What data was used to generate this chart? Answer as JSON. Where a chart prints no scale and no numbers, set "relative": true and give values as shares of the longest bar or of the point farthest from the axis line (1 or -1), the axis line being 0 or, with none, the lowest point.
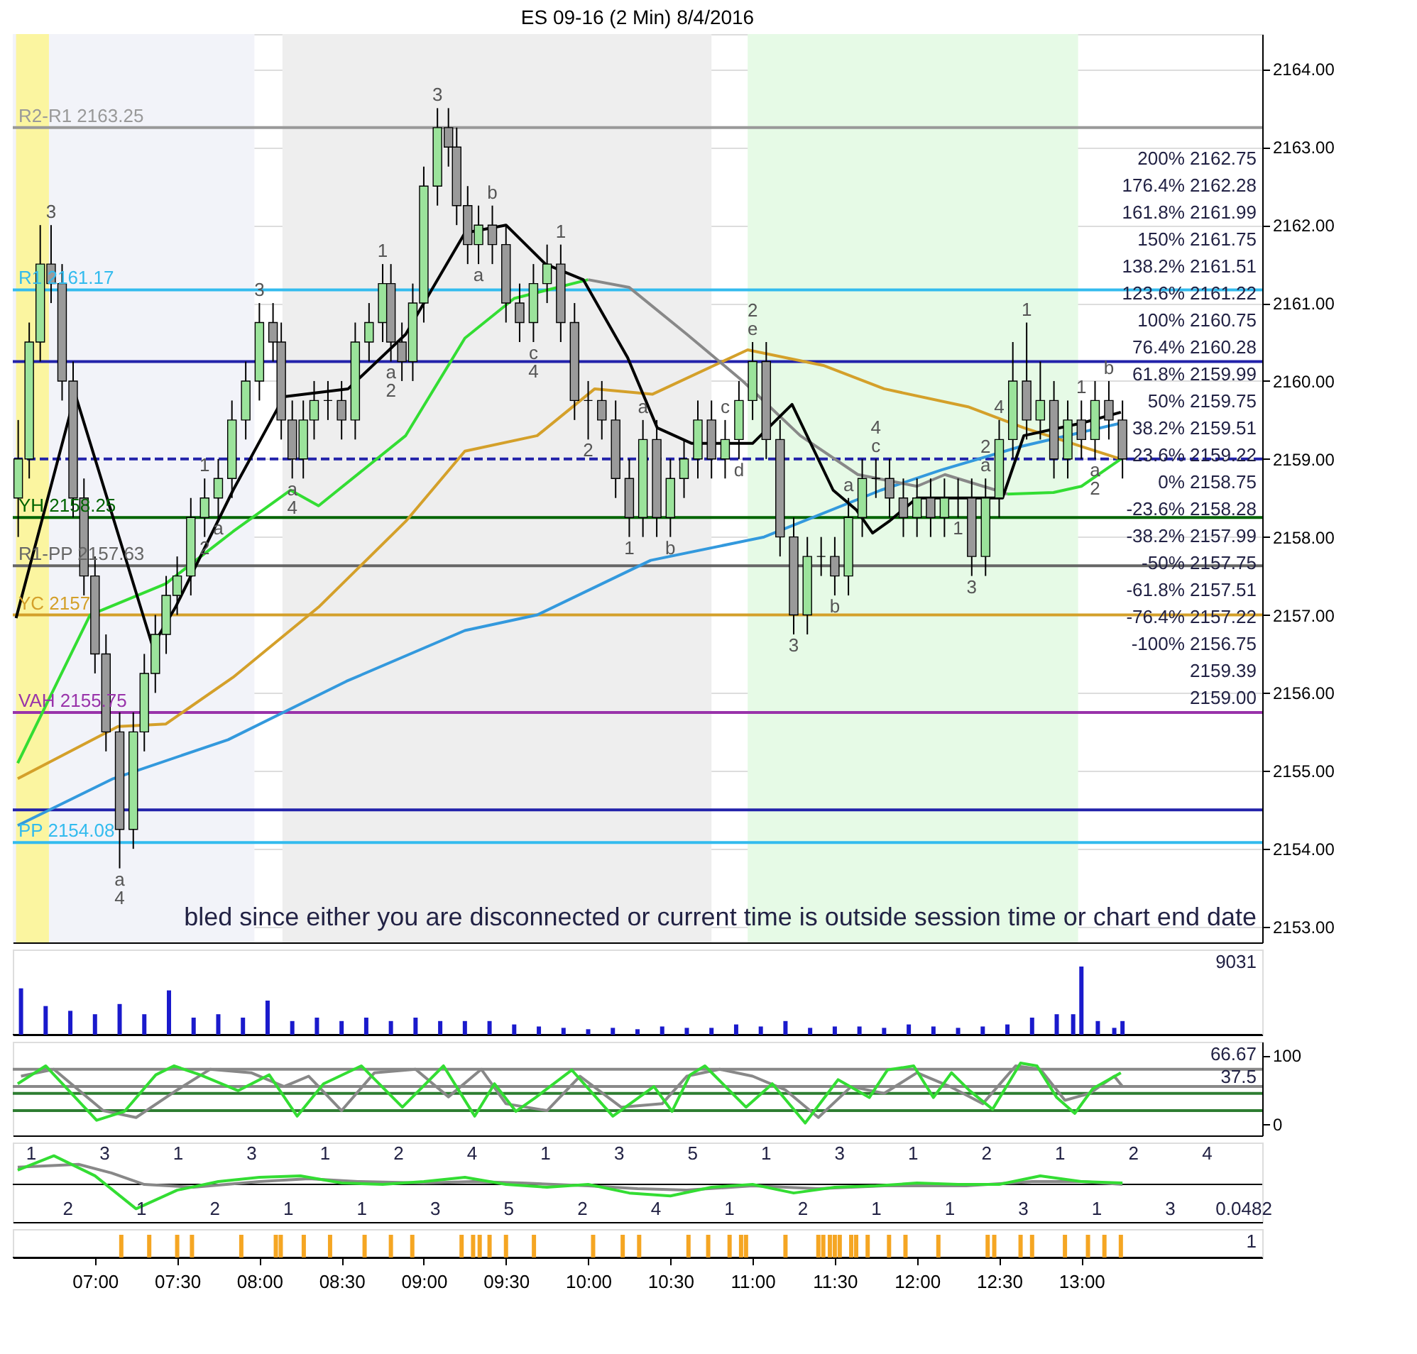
{
  "chart_data": [
    {
      "type": "candlestick",
      "title": "ES 09-16 (2 Min)  8/4/2016",
      "xlim": [
        6.5,
        14.1
      ],
      "ylim": [
        2152.8,
        2164.45
      ],
      "grid": "y",
      "tick_labels": "y",
      "yticks": [
        {
          "value": 2153,
          "label": "2153.00"
        },
        {
          "value": 2154,
          "label": "2154.00"
        },
        {
          "value": 2155,
          "label": "2155.00"
        },
        {
          "value": 2156,
          "label": "2156.00"
        },
        {
          "value": 2157,
          "label": "2157.00"
        },
        {
          "value": 2158,
          "label": "2158.00"
        },
        {
          "value": 2159,
          "label": "2159.00"
        },
        {
          "value": 2160,
          "label": "2160.00"
        },
        {
          "value": 2161,
          "label": "2161.00"
        },
        {
          "value": 2162,
          "label": "2162.00"
        },
        {
          "value": 2163,
          "label": "2163.00"
        },
        {
          "value": 2164,
          "label": "2164.00"
        }
      ],
      "x": [
        6.533,
        6.6,
        6.667,
        6.733,
        6.8,
        6.867,
        6.933,
        7.0,
        7.067,
        7.15,
        7.233,
        7.3,
        7.367,
        7.433,
        7.5,
        7.583,
        7.667,
        7.75,
        7.833,
        7.917,
        8.0,
        8.083,
        8.133,
        8.2,
        8.267,
        8.333,
        8.417,
        8.5,
        8.583,
        8.667,
        8.75,
        8.8,
        8.867,
        8.933,
        9.0,
        9.083,
        9.15,
        9.2,
        9.267,
        9.333,
        9.417,
        9.5,
        9.583,
        9.667,
        9.75,
        9.833,
        9.917,
        10.0,
        10.083,
        10.167,
        10.25,
        10.333,
        10.417,
        10.5,
        10.583,
        10.667,
        10.75,
        10.833,
        10.917,
        11.0,
        11.083,
        11.167,
        11.25,
        11.333,
        11.417,
        11.5,
        11.583,
        11.667,
        11.75,
        11.833,
        11.917,
        12.0,
        12.083,
        12.167,
        12.25,
        12.333,
        12.417,
        12.5,
        12.583,
        12.667,
        12.75,
        12.833,
        12.917,
        13.0,
        13.083,
        13.167,
        13.25
      ],
      "ohlc": [
        [
          2158.5,
          2159.5,
          2158.0,
          2159.0
        ],
        [
          2159.0,
          2160.75,
          2158.75,
          2160.5
        ],
        [
          2160.5,
          2162.0,
          2160.25,
          2161.5
        ],
        [
          2161.5,
          2162.0,
          2161.0,
          2161.25
        ],
        [
          2161.25,
          2161.5,
          2159.75,
          2160.0
        ],
        [
          2160.0,
          2160.25,
          2158.25,
          2158.5
        ],
        [
          2158.5,
          2158.75,
          2157.25,
          2157.5
        ],
        [
          2157.5,
          2157.75,
          2156.25,
          2156.5
        ],
        [
          2156.5,
          2156.75,
          2155.25,
          2155.5
        ],
        [
          2155.5,
          2155.75,
          2153.75,
          2154.25
        ],
        [
          2154.25,
          2155.75,
          2154.0,
          2155.5
        ],
        [
          2155.5,
          2156.5,
          2155.25,
          2156.25
        ],
        [
          2156.25,
          2157.0,
          2156.0,
          2156.75
        ],
        [
          2156.75,
          2157.5,
          2156.5,
          2157.25
        ],
        [
          2157.25,
          2157.75,
          2157.0,
          2157.5
        ],
        [
          2157.5,
          2158.5,
          2157.25,
          2158.25
        ],
        [
          2158.25,
          2158.75,
          2158.0,
          2158.5
        ],
        [
          2158.5,
          2159.0,
          2158.25,
          2158.75
        ],
        [
          2158.75,
          2159.75,
          2158.5,
          2159.5
        ],
        [
          2159.5,
          2160.25,
          2159.25,
          2160.0
        ],
        [
          2160.0,
          2161.0,
          2159.75,
          2160.75
        ],
        [
          2160.75,
          2161.0,
          2160.25,
          2160.5
        ],
        [
          2160.5,
          2160.75,
          2159.25,
          2159.5
        ],
        [
          2159.5,
          2159.75,
          2158.75,
          2159.0
        ],
        [
          2159.0,
          2159.75,
          2158.75,
          2159.5
        ],
        [
          2159.5,
          2160.0,
          2159.25,
          2159.75
        ],
        [
          2159.75,
          2160.0,
          2159.5,
          2159.75
        ],
        [
          2159.75,
          2160.0,
          2159.25,
          2159.5
        ],
        [
          2159.5,
          2160.75,
          2159.25,
          2160.5
        ],
        [
          2160.5,
          2161.0,
          2160.25,
          2160.75
        ],
        [
          2160.75,
          2161.5,
          2160.5,
          2161.25
        ],
        [
          2161.25,
          2161.5,
          2160.25,
          2160.5
        ],
        [
          2160.5,
          2160.75,
          2160.0,
          2160.25
        ],
        [
          2160.25,
          2161.25,
          2160.0,
          2161.0
        ],
        [
          2161.0,
          2162.75,
          2160.75,
          2162.5
        ],
        [
          2162.5,
          2163.5,
          2162.25,
          2163.25
        ],
        [
          2163.25,
          2163.5,
          2162.75,
          2163.0
        ],
        [
          2163.0,
          2163.25,
          2162.0,
          2162.25
        ],
        [
          2162.25,
          2162.5,
          2161.5,
          2161.75
        ],
        [
          2161.75,
          2162.25,
          2161.5,
          2162.0
        ],
        [
          2162.0,
          2162.25,
          2161.5,
          2161.75
        ],
        [
          2161.75,
          2162.0,
          2160.75,
          2161.0
        ],
        [
          2161.0,
          2161.25,
          2160.5,
          2160.75
        ],
        [
          2160.75,
          2161.5,
          2160.5,
          2161.25
        ],
        [
          2161.25,
          2161.75,
          2161.0,
          2161.5
        ],
        [
          2161.5,
          2161.75,
          2160.5,
          2160.75
        ],
        [
          2160.75,
          2161.0,
          2159.5,
          2159.75
        ],
        [
          2159.75,
          2160.0,
          2159.25,
          2159.75
        ],
        [
          2159.75,
          2160.0,
          2159.25,
          2159.5
        ],
        [
          2159.5,
          2159.75,
          2158.5,
          2158.75
        ],
        [
          2158.75,
          2159.0,
          2158.0,
          2158.25
        ],
        [
          2158.25,
          2159.5,
          2158.0,
          2159.25
        ],
        [
          2159.25,
          2159.5,
          2158.0,
          2158.25
        ],
        [
          2158.25,
          2159.0,
          2158.0,
          2158.75
        ],
        [
          2158.75,
          2159.25,
          2158.5,
          2159.0
        ],
        [
          2159.0,
          2159.75,
          2158.75,
          2159.5
        ],
        [
          2159.5,
          2159.75,
          2158.75,
          2159.0
        ],
        [
          2159.0,
          2159.5,
          2158.75,
          2159.25
        ],
        [
          2159.25,
          2160.0,
          2159.0,
          2159.75
        ],
        [
          2159.75,
          2160.5,
          2159.5,
          2160.25
        ],
        [
          2160.25,
          2160.5,
          2159.0,
          2159.25
        ],
        [
          2159.25,
          2159.5,
          2157.75,
          2158.0
        ],
        [
          2158.0,
          2158.25,
          2156.75,
          2157.0
        ],
        [
          2157.0,
          2158.0,
          2156.75,
          2157.75
        ],
        [
          2157.75,
          2158.0,
          2157.5,
          2157.75
        ],
        [
          2157.75,
          2158.0,
          2157.25,
          2157.5
        ],
        [
          2157.5,
          2158.5,
          2157.25,
          2158.25
        ],
        [
          2158.25,
          2159.0,
          2158.0,
          2158.75
        ],
        [
          2158.75,
          2159.0,
          2158.5,
          2158.75
        ],
        [
          2158.75,
          2159.0,
          2158.25,
          2158.5
        ],
        [
          2158.5,
          2158.75,
          2158.0,
          2158.25
        ],
        [
          2158.25,
          2158.75,
          2158.0,
          2158.5
        ],
        [
          2158.5,
          2158.75,
          2158.0,
          2158.25
        ],
        [
          2158.25,
          2158.75,
          2158.0,
          2158.5
        ],
        [
          2158.5,
          2158.75,
          2158.25,
          2158.5
        ],
        [
          2158.5,
          2158.75,
          2157.5,
          2157.75
        ],
        [
          2157.75,
          2158.75,
          2157.5,
          2158.5
        ],
        [
          2158.5,
          2159.5,
          2158.25,
          2159.25
        ],
        [
          2159.25,
          2160.5,
          2159.0,
          2160.0
        ],
        [
          2160.0,
          2160.75,
          2159.25,
          2159.5
        ],
        [
          2159.5,
          2160.25,
          2159.25,
          2159.75
        ],
        [
          2159.75,
          2160.0,
          2158.75,
          2159.0
        ],
        [
          2159.0,
          2159.75,
          2158.75,
          2159.5
        ],
        [
          2159.5,
          2159.75,
          2159.0,
          2159.25
        ],
        [
          2159.25,
          2160.0,
          2159.0,
          2159.75
        ],
        [
          2159.75,
          2160.0,
          2159.25,
          2159.5
        ],
        [
          2159.5,
          2159.75,
          2158.75,
          2159.0
        ]
      ],
      "series": [
        {
          "type": "line",
          "color": "#3399dd",
          "x": [
            6.53,
            7.11,
            7.81,
            8.53,
            9.25,
            9.69,
            10.38,
            11.07,
            11.78,
            12.15,
            12.63,
            13.24
          ],
          "values": [
            2154.3,
            2154.9,
            2155.4,
            2156.15,
            2156.8,
            2157.0,
            2157.7,
            2158.0,
            2158.6,
            2158.86,
            2159.16,
            2159.46
          ]
        },
        {
          "type": "line",
          "color": "#d4a02a",
          "x": [
            6.53,
            7.14,
            7.43,
            7.84,
            8.36,
            8.89,
            9.25,
            9.69,
            10.04,
            10.39,
            10.97,
            11.43,
            11.8,
            12.31,
            12.65,
            13.0,
            13.24
          ],
          "values": [
            2154.9,
            2155.57,
            2155.6,
            2156.2,
            2157.1,
            2158.2,
            2159.1,
            2159.3,
            2159.9,
            2159.83,
            2160.4,
            2160.2,
            2159.9,
            2159.67,
            2159.4,
            2159.16,
            2159.0
          ]
        },
        {
          "type": "line",
          "color": "#33dd33",
          "x": [
            6.53,
            6.97,
            7.43,
            7.84,
            8.19,
            8.36,
            8.89,
            9.25,
            9.55,
            10.0
          ],
          "values": [
            2155.1,
            2157.0,
            2157.4,
            2158.07,
            2158.6,
            2158.4,
            2159.3,
            2160.55,
            2161.06,
            2161.3
          ]
        },
        {
          "type": "line",
          "color": "#888888",
          "x": [
            10.0,
            10.25,
            10.6,
            10.94,
            11.29,
            11.64,
            12.0,
            12.17,
            12.48,
            12.55
          ],
          "values": [
            2161.3,
            2161.2,
            2160.6,
            2160.0,
            2159.3,
            2158.8,
            2158.65,
            2158.8,
            2158.6,
            2158.55
          ]
        },
        {
          "type": "line",
          "color": "#33dd33",
          "x": [
            12.55,
            12.83,
            13.0,
            13.24
          ],
          "values": [
            2158.55,
            2158.57,
            2158.65,
            2159.0
          ]
        },
        {
          "type": "line",
          "color": "#000000",
          "x": [
            6.52,
            6.88,
            7.35,
            7.49,
            7.84,
            8.15,
            8.54,
            8.89,
            9.25,
            9.5,
            9.74,
            9.97,
            10.24,
            10.42,
            10.63,
            11.0,
            11.24,
            11.49,
            11.63,
            11.73,
            11.83,
            12.0,
            12.52,
            12.65,
            13.0,
            13.24
          ],
          "values": [
            2156.96,
            2159.83,
            2156.6,
            2157.1,
            2158.6,
            2159.8,
            2159.9,
            2160.6,
            2161.9,
            2162.0,
            2161.5,
            2161.3,
            2160.3,
            2159.4,
            2159.2,
            2159.2,
            2159.7,
            2158.6,
            2158.35,
            2158.05,
            2158.2,
            2158.5,
            2158.5,
            2159.3,
            2159.46,
            2159.6
          ]
        }
      ],
      "ref_lines": [
        {
          "axis": "y",
          "value": 2163.25,
          "label": "R2-R1 2163.25",
          "color": "#999999"
        },
        {
          "axis": "y",
          "value": 2161.17,
          "label": "R1 2161.17",
          "color": "#33bbee"
        },
        {
          "axis": "y",
          "value": 2160.25,
          "color": "#2222aa"
        },
        {
          "axis": "y",
          "value": 2159.0,
          "color": "#2222aa",
          "line_style": "dashed"
        },
        {
          "axis": "y",
          "value": 2158.25,
          "label": "YH 2158.25",
          "color": "#006400"
        },
        {
          "axis": "y",
          "value": 2157.63,
          "label": "R1-PP 2157.63",
          "color": "#666666"
        },
        {
          "axis": "y",
          "value": 2157.0,
          "label": "YC 2157",
          "color": "#d4a02a"
        },
        {
          "axis": "y",
          "value": 2155.75,
          "label": "VAH 2155.75",
          "color": "#9933aa"
        },
        {
          "axis": "y",
          "value": 2154.5,
          "color": "#2222aa"
        },
        {
          "axis": "y",
          "value": 2154.08,
          "label": "PP 2154.08",
          "color": "#33bbee"
        }
      ],
      "bands": [
        {
          "axis": "x",
          "from": 6.5,
          "to": 7.97,
          "color": "#f2f3f9"
        },
        {
          "axis": "x",
          "from": 6.52,
          "to": 6.72,
          "color": "#fbf5a0"
        },
        {
          "axis": "x",
          "from": 8.14,
          "to": 10.75,
          "color": "#eeeeee"
        },
        {
          "axis": "x",
          "from": 10.97,
          "to": 12.98,
          "color": "#e6fae6"
        }
      ],
      "annotations": [
        {
          "text": "3",
          "x": 6.733,
          "y": 2162.0
        },
        {
          "text": "3",
          "x": 8.0,
          "y": 2161.0
        },
        {
          "text": "1",
          "x": 7.667,
          "y": 2158.75
        },
        {
          "text": "1",
          "x": 8.75,
          "y": 2161.5
        },
        {
          "text": "a",
          "x": 8.8,
          "y": 2160.25
        },
        {
          "text": "2",
          "x": 8.8,
          "y": 2160.25
        },
        {
          "text": "a",
          "x": 7.75,
          "y": 2158.25
        },
        {
          "text": "2",
          "x": 7.667,
          "y": 2158.0
        },
        {
          "text": "a",
          "x": 8.2,
          "y": 2158.75
        },
        {
          "text": "4",
          "x": 8.2,
          "y": 2158.75
        },
        {
          "text": "3",
          "x": 9.083,
          "y": 2163.5
        },
        {
          "text": "a",
          "x": 7.15,
          "y": 2153.75
        },
        {
          "text": "4",
          "x": 7.15,
          "y": 2153.75
        },
        {
          "text": "b",
          "x": 9.417,
          "y": 2162.25
        },
        {
          "text": "a",
          "x": 9.333,
          "y": 2161.5
        },
        {
          "text": "1",
          "x": 9.833,
          "y": 2161.75
        },
        {
          "text": "c",
          "x": 9.667,
          "y": 2160.5
        },
        {
          "text": "4",
          "x": 9.667,
          "y": 2160.5
        },
        {
          "text": "2",
          "x": 10.0,
          "y": 2159.25
        },
        {
          "text": "1",
          "x": 12.667,
          "y": 2160.75
        },
        {
          "text": "1",
          "x": 13.0,
          "y": 2159.75
        },
        {
          "text": "b",
          "x": 13.167,
          "y": 2160.0
        },
        {
          "text": "a",
          "x": 13.083,
          "y": 2159.0
        },
        {
          "text": "2",
          "x": 13.083,
          "y": 2159.0
        },
        {
          "text": "a",
          "x": 10.333,
          "y": 2159.5
        },
        {
          "text": "1",
          "x": 10.25,
          "y": 2158.0
        },
        {
          "text": "b",
          "x": 10.5,
          "y": 2158.0
        },
        {
          "text": "c",
          "x": 10.833,
          "y": 2159.5
        },
        {
          "text": "d",
          "x": 10.917,
          "y": 2159.0
        },
        {
          "text": "2",
          "x": 11.0,
          "y": 2160.5
        },
        {
          "text": "e",
          "x": 11.0,
          "y": 2160.5
        },
        {
          "text": "3",
          "x": 11.25,
          "y": 2156.75
        },
        {
          "text": "a",
          "x": 11.583,
          "y": 2158.5
        },
        {
          "text": "b",
          "x": 11.5,
          "y": 2157.25
        },
        {
          "text": "4",
          "x": 11.75,
          "y": 2159.0
        },
        {
          "text": "c",
          "x": 11.75,
          "y": 2159.0
        },
        {
          "text": "4",
          "x": 12.5,
          "y": 2159.5
        },
        {
          "text": "2",
          "x": 12.417,
          "y": 2158.75
        },
        {
          "text": "a",
          "x": 12.417,
          "y": 2158.75
        },
        {
          "text": "1",
          "x": 12.25,
          "y": 2158.25
        },
        {
          "text": "3",
          "x": 12.333,
          "y": 2157.5
        },
        "200%  2162.75",
        "176.4%  2162.28",
        "161.8%  2161.99",
        "150%  2161.75",
        "138.2%  2161.51",
        "123.6%  2161.22",
        "100%  2160.75",
        "76.4%  2160.28",
        "61.8%  2159.99",
        "50%  2159.75",
        "38.2%  2159.51",
        "23.6%  2159.22",
        "0%  2158.75",
        "-23.6%  2158.28",
        "-38.2%  2157.99",
        "-50%  2157.75",
        "-61.8%  2157.51",
        "-76.4%  2157.22",
        "-100%  2156.75",
        "2159.39",
        "2159.00",
        "bled since either you are disconnected or current time is outside session time or chart end date"
      ]
    },
    {
      "type": "bar",
      "relative": true,
      "tick_labels": false,
      "xlim": [
        6.5,
        14.1
      ],
      "color": "#1a1acc",
      "x": [
        6.55,
        6.7,
        6.85,
        7.0,
        7.15,
        7.3,
        7.45,
        7.6,
        7.75,
        7.9,
        8.05,
        8.2,
        8.35,
        8.5,
        8.65,
        8.8,
        8.95,
        9.1,
        9.25,
        9.4,
        9.55,
        9.7,
        9.85,
        10.0,
        10.15,
        10.3,
        10.45,
        10.6,
        10.75,
        10.9,
        11.05,
        11.2,
        11.35,
        11.5,
        11.65,
        11.8,
        11.95,
        12.1,
        12.25,
        12.4,
        12.55,
        12.7,
        12.85,
        12.95,
        13.0,
        13.1,
        13.2,
        13.25
      ],
      "values": [
        0.68,
        0.42,
        0.35,
        0.3,
        0.45,
        0.3,
        0.65,
        0.25,
        0.3,
        0.25,
        0.5,
        0.2,
        0.25,
        0.2,
        0.25,
        0.2,
        0.25,
        0.2,
        0.2,
        0.2,
        0.15,
        0.12,
        0.1,
        0.08,
        0.1,
        0.08,
        0.12,
        0.1,
        0.1,
        0.15,
        0.12,
        0.2,
        0.1,
        0.12,
        0.12,
        0.1,
        0.15,
        0.12,
        0.1,
        0.12,
        0.15,
        0.25,
        0.3,
        0.3,
        1.0,
        0.2,
        0.1,
        0.2
      ],
      "annotations": [
        "9031"
      ]
    },
    {
      "type": "line",
      "tick_labels": "y",
      "xlim": [
        6.5,
        14.1
      ],
      "ylim": [
        -16,
        120
      ],
      "yticks": [
        0,
        100
      ],
      "series": [
        {
          "color": "#888888",
          "x": [
            6.55,
            6.75,
            7.05,
            7.25,
            7.5,
            7.7,
            7.95,
            8.15,
            8.3,
            8.5,
            8.7,
            8.95,
            9.15,
            9.35,
            9.5,
            9.75,
            9.95,
            10.2,
            10.45,
            10.6,
            10.8,
            11.0,
            11.2,
            11.4,
            11.6,
            11.8,
            12.0,
            12.2,
            12.4,
            12.6,
            12.75,
            12.9,
            13.05,
            13.2,
            13.25
          ],
          "values": [
            70,
            80,
            20,
            10,
            50,
            80,
            75,
            55,
            70,
            20,
            75,
            80,
            40,
            80,
            30,
            20,
            70,
            25,
            30,
            70,
            80,
            70,
            50,
            10,
            55,
            45,
            75,
            55,
            30,
            85,
            80,
            35,
            45,
            70,
            55
          ]
        },
        {
          "color": "#33dd33",
          "x": [
            6.53,
            6.7,
            7.01,
            7.18,
            7.37,
            7.48,
            7.64,
            7.87,
            8.06,
            8.23,
            8.39,
            8.62,
            8.87,
            9.12,
            9.31,
            9.43,
            9.56,
            9.68,
            9.9,
            10.15,
            10.4,
            10.51,
            10.62,
            10.71,
            10.96,
            11.12,
            11.32,
            11.52,
            11.71,
            11.82,
            11.98,
            12.1,
            12.21,
            12.32,
            12.46,
            12.63,
            12.73,
            12.85,
            12.96,
            13.07,
            13.24
          ],
          "values": [
            59,
            85,
            6,
            19,
            72,
            85,
            72,
            49,
            72,
            12,
            59,
            85,
            25,
            85,
            12,
            59,
            19,
            39,
            79,
            12,
            55,
            19,
            72,
            85,
            25,
            59,
            2,
            65,
            39,
            79,
            85,
            39,
            75,
            49,
            22,
            89,
            85,
            39,
            16,
            52,
            75
          ]
        }
      ],
      "ref_lines": [
        {
          "axis": "y",
          "value": 80,
          "color": "#888888"
        },
        {
          "axis": "y",
          "value": 55,
          "color": "#888888"
        },
        {
          "axis": "y",
          "value": 45,
          "color": "#2e7d32"
        },
        {
          "axis": "y",
          "value": 20,
          "color": "#2e7d32"
        }
      ],
      "annotations": [
        "66.67",
        "37.5"
      ]
    },
    {
      "type": "line",
      "relative": true,
      "tick_labels": false,
      "xlim": [
        6.5,
        14.1
      ],
      "series": [
        {
          "color": "#888888",
          "x": [
            6.53,
            6.9,
            7.1,
            7.3,
            7.6,
            8.0,
            8.3,
            8.6,
            9.0,
            9.3,
            9.6,
            10.0,
            10.3,
            10.6,
            11.0,
            11.4,
            11.8,
            12.3,
            12.7,
            13.0,
            13.25
          ],
          "values": [
            0.6,
            0.7,
            0.4,
            0.0,
            -0.1,
            0.1,
            0.2,
            0.1,
            0.05,
            0.1,
            0.05,
            -0.05,
            -0.15,
            -0.2,
            -0.05,
            -0.15,
            -0.05,
            -0.05,
            0.1,
            0.1,
            0.0
          ]
        },
        {
          "color": "#33dd33",
          "x": [
            6.53,
            6.75,
            7.0,
            7.25,
            7.5,
            7.75,
            8.0,
            8.25,
            8.5,
            8.75,
            9.0,
            9.25,
            9.5,
            9.75,
            10.0,
            10.25,
            10.5,
            10.75,
            11.0,
            11.25,
            11.5,
            11.75,
            12.0,
            12.25,
            12.5,
            12.75,
            13.0,
            13.25
          ],
          "values": [
            0.5,
            1.0,
            0.3,
            -0.85,
            -0.2,
            0.1,
            0.25,
            0.3,
            0.05,
            0.0,
            0.1,
            0.25,
            0.0,
            -0.1,
            0.0,
            -0.3,
            -0.4,
            -0.1,
            0.0,
            -0.3,
            -0.1,
            -0.05,
            0.05,
            0.0,
            0.0,
            0.3,
            0.1,
            0.05
          ]
        }
      ],
      "annotations": [
        "1",
        "2",
        "3",
        "1",
        "1",
        "2",
        "3",
        "1",
        "1",
        "1",
        "2",
        "3",
        "4",
        "5",
        "1",
        "2",
        "3",
        "4",
        "5",
        "1",
        "1",
        "2",
        "3",
        "1",
        "1",
        "1",
        "2",
        "3",
        "1",
        "1",
        "2",
        "3",
        "4",
        "0.0482"
      ]
    },
    {
      "type": "bar",
      "relative": true,
      "tick_labels": "x",
      "color": "#f5a623",
      "xlim": [
        6.5,
        14.1
      ],
      "xticks": [
        {
          "value": 7,
          "label": "07:00"
        },
        {
          "value": 7.5,
          "label": "07:30"
        },
        {
          "value": 8,
          "label": "08:00"
        },
        {
          "value": 8.5,
          "label": "08:30"
        },
        {
          "value": 9,
          "label": "09:00"
        },
        {
          "value": 9.5,
          "label": "09:30"
        },
        {
          "value": 10,
          "label": "10:00"
        },
        {
          "value": 10.5,
          "label": "10:30"
        },
        {
          "value": 11,
          "label": "11:00"
        },
        {
          "value": 11.5,
          "label": "11:30"
        },
        {
          "value": 12,
          "label": "12:00"
        },
        {
          "value": 12.5,
          "label": "12:30"
        },
        {
          "value": 13,
          "label": "13:00"
        }
      ],
      "x": [
        7.16,
        7.33,
        7.5,
        7.59,
        7.89,
        8.1,
        8.13,
        8.27,
        8.43,
        8.64,
        8.8,
        8.93,
        9.23,
        9.3,
        9.34,
        9.4,
        9.5,
        9.67,
        10.03,
        10.21,
        10.31,
        10.61,
        10.73,
        10.86,
        10.93,
        10.96,
        11.2,
        11.4,
        11.43,
        11.47,
        11.5,
        11.53,
        11.6,
        11.63,
        11.7,
        11.83,
        11.93,
        12.13,
        12.43,
        12.47,
        12.63,
        12.7,
        12.9,
        13.04,
        13.14,
        13.24
      ],
      "values": [
        1,
        1,
        1,
        1,
        1,
        1,
        1,
        1,
        1,
        1,
        1,
        1,
        1,
        1,
        1,
        1,
        1,
        1,
        1,
        1,
        1,
        1,
        1,
        1,
        1,
        1,
        1,
        1,
        1,
        1,
        1,
        1,
        1,
        1,
        1,
        1,
        1,
        1,
        1,
        1,
        1,
        1,
        1,
        1,
        1,
        1
      ],
      "annotations": [
        "1"
      ]
    }
  ]
}
